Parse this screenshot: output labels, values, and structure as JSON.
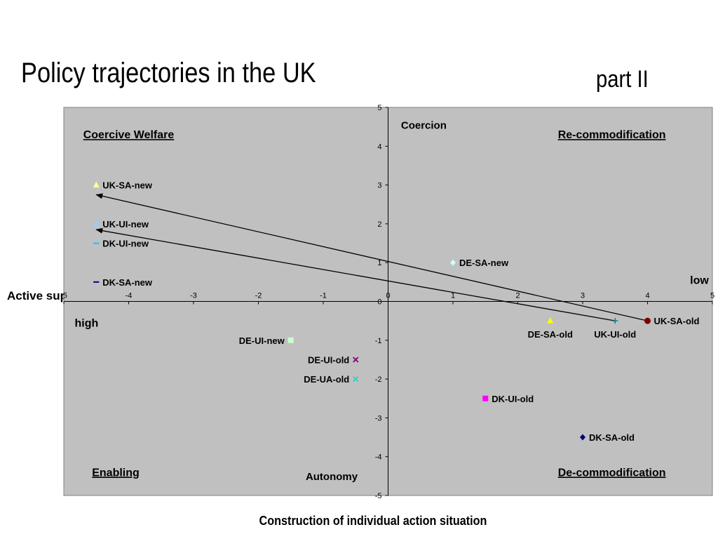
{
  "title": "Policy trajectories in the UK",
  "subtitle": "part II",
  "chart_data": {
    "type": "scatter",
    "xlabel": "Construction of individual action situation",
    "ylabel": "Active support",
    "xlim": [
      -5,
      5
    ],
    "ylim": [
      -5,
      5
    ],
    "xticks": [
      "-5",
      "-4",
      "-3",
      "-2",
      "-1",
      "0",
      "1",
      "2",
      "3",
      "4",
      "5"
    ],
    "yticks": [
      "5",
      "4",
      "3",
      "2",
      "1",
      "0",
      "-1",
      "-2",
      "-3",
      "-4",
      "-5"
    ],
    "grid": false,
    "background": "#c0c0c0",
    "points": [
      {
        "label": "UK-SA-new",
        "x": -4.5,
        "y": 3.0,
        "marker": "triangle",
        "color": "#ffff99",
        "labelSide": "right"
      },
      {
        "label": "UK-UI-new",
        "x": -4.5,
        "y": 2.0,
        "marker": "triangle",
        "color": "#99ccff",
        "labelSide": "right"
      },
      {
        "label": "DK-UI-new",
        "x": -4.5,
        "y": 1.5,
        "marker": "dash",
        "color": "#00ccff",
        "labelSide": "right"
      },
      {
        "label": "DK-SA-new",
        "x": -4.5,
        "y": 0.5,
        "marker": "dash",
        "color": "#000080",
        "labelSide": "right"
      },
      {
        "label": "DE-SA-new",
        "x": 1.0,
        "y": 1.0,
        "marker": "diamond",
        "color": "#ccffff",
        "labelSide": "right"
      },
      {
        "label": "UK-SA-old",
        "x": 4.0,
        "y": -0.5,
        "marker": "circle",
        "color": "#800000",
        "labelSide": "right"
      },
      {
        "label": "DE-SA-old",
        "x": 2.5,
        "y": -0.5,
        "marker": "triangle",
        "color": "#ffff00",
        "labelSide": "below"
      },
      {
        "label": "UK-UI-old",
        "x": 3.5,
        "y": -0.5,
        "marker": "plus",
        "color": "#008080",
        "labelSide": "below"
      },
      {
        "label": "DE-UI-new",
        "x": -1.5,
        "y": -1.0,
        "marker": "square",
        "color": "#ccffcc",
        "labelSide": "left"
      },
      {
        "label": "DE-UI-old",
        "x": -0.5,
        "y": -1.5,
        "marker": "x",
        "color": "#800080",
        "labelSide": "left"
      },
      {
        "label": "DE-UA-old",
        "x": -0.5,
        "y": -2.0,
        "marker": "x",
        "color": "#33cccc",
        "labelSide": "left"
      },
      {
        "label": "DK-UI-old",
        "x": 1.5,
        "y": -2.5,
        "marker": "square",
        "color": "#ff00ff",
        "labelSide": "right"
      },
      {
        "label": "DK-SA-old",
        "x": 3.0,
        "y": -3.5,
        "marker": "diamond",
        "color": "#000080",
        "labelSide": "right"
      }
    ],
    "arrows": [
      {
        "from": [
          4.0,
          -0.5
        ],
        "to": [
          -4.5,
          2.75
        ]
      },
      {
        "from": [
          3.5,
          -0.5
        ],
        "to": [
          -4.5,
          1.85
        ]
      }
    ],
    "annotations": [
      {
        "text": "Coercive Welfare",
        "x": -4.0,
        "y": 4.2,
        "underline": true,
        "size": 16
      },
      {
        "text": "Re-commodification",
        "x": 3.45,
        "y": 4.2,
        "underline": true,
        "size": 16
      },
      {
        "text": "Enabling",
        "x": -4.2,
        "y": -4.5,
        "underline": true,
        "size": 16
      },
      {
        "text": "De-commodification",
        "x": 3.45,
        "y": -4.5,
        "underline": true,
        "size": 16
      },
      {
        "text": "Coercion",
        "x": 0.55,
        "y": 4.45,
        "underline": false,
        "size": 15
      },
      {
        "text": "Autonomy",
        "x": -0.87,
        "y": -4.6,
        "underline": false,
        "size": 15
      },
      {
        "text": "low",
        "x": 4.8,
        "y": 0.45,
        "underline": false,
        "size": 16
      },
      {
        "text": "high",
        "x": -4.65,
        "y": -0.65,
        "underline": false,
        "size": 16
      }
    ]
  }
}
